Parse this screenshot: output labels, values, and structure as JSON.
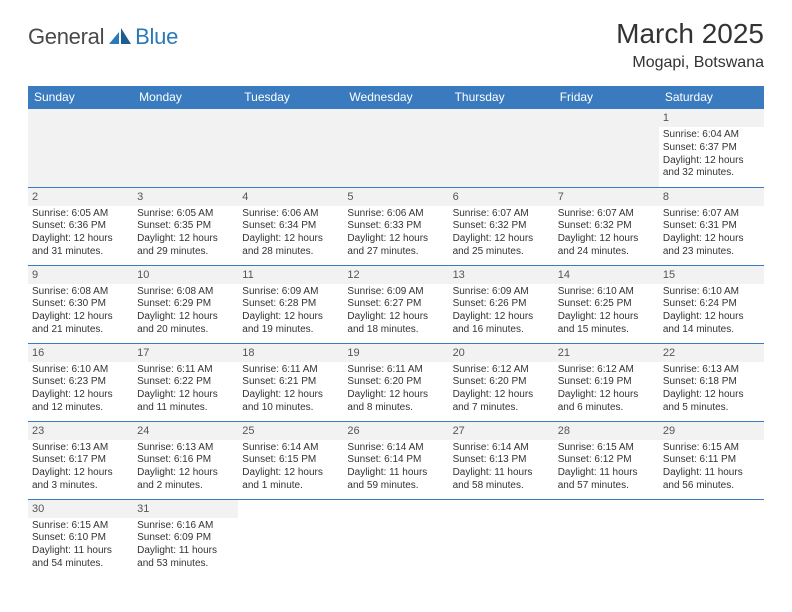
{
  "logo": {
    "text_general": "General",
    "text_blue": "Blue"
  },
  "header": {
    "title": "March 2025",
    "subtitle": "Mogapi, Botswana"
  },
  "colors": {
    "header_bg": "#3a7bbf",
    "header_text": "#ffffff",
    "daynum_bg": "#f2f2f2",
    "border": "#3a7bbf",
    "logo_blue": "#2a7ab9",
    "logo_gray": "#4a4a4a"
  },
  "layout": {
    "columns": 7,
    "rows": 6,
    "font_family": "Arial",
    "cell_font_size": 10,
    "header_font_size": 12
  },
  "days_of_week": [
    "Sunday",
    "Monday",
    "Tuesday",
    "Wednesday",
    "Thursday",
    "Friday",
    "Saturday"
  ],
  "grid": [
    [
      null,
      null,
      null,
      null,
      null,
      null,
      {
        "n": "1",
        "sunrise": "Sunrise: 6:04 AM",
        "sunset": "Sunset: 6:37 PM",
        "daylight": "Daylight: 12 hours and 32 minutes."
      }
    ],
    [
      {
        "n": "2",
        "sunrise": "Sunrise: 6:05 AM",
        "sunset": "Sunset: 6:36 PM",
        "daylight": "Daylight: 12 hours and 31 minutes."
      },
      {
        "n": "3",
        "sunrise": "Sunrise: 6:05 AM",
        "sunset": "Sunset: 6:35 PM",
        "daylight": "Daylight: 12 hours and 29 minutes."
      },
      {
        "n": "4",
        "sunrise": "Sunrise: 6:06 AM",
        "sunset": "Sunset: 6:34 PM",
        "daylight": "Daylight: 12 hours and 28 minutes."
      },
      {
        "n": "5",
        "sunrise": "Sunrise: 6:06 AM",
        "sunset": "Sunset: 6:33 PM",
        "daylight": "Daylight: 12 hours and 27 minutes."
      },
      {
        "n": "6",
        "sunrise": "Sunrise: 6:07 AM",
        "sunset": "Sunset: 6:32 PM",
        "daylight": "Daylight: 12 hours and 25 minutes."
      },
      {
        "n": "7",
        "sunrise": "Sunrise: 6:07 AM",
        "sunset": "Sunset: 6:32 PM",
        "daylight": "Daylight: 12 hours and 24 minutes."
      },
      {
        "n": "8",
        "sunrise": "Sunrise: 6:07 AM",
        "sunset": "Sunset: 6:31 PM",
        "daylight": "Daylight: 12 hours and 23 minutes."
      }
    ],
    [
      {
        "n": "9",
        "sunrise": "Sunrise: 6:08 AM",
        "sunset": "Sunset: 6:30 PM",
        "daylight": "Daylight: 12 hours and 21 minutes."
      },
      {
        "n": "10",
        "sunrise": "Sunrise: 6:08 AM",
        "sunset": "Sunset: 6:29 PM",
        "daylight": "Daylight: 12 hours and 20 minutes."
      },
      {
        "n": "11",
        "sunrise": "Sunrise: 6:09 AM",
        "sunset": "Sunset: 6:28 PM",
        "daylight": "Daylight: 12 hours and 19 minutes."
      },
      {
        "n": "12",
        "sunrise": "Sunrise: 6:09 AM",
        "sunset": "Sunset: 6:27 PM",
        "daylight": "Daylight: 12 hours and 18 minutes."
      },
      {
        "n": "13",
        "sunrise": "Sunrise: 6:09 AM",
        "sunset": "Sunset: 6:26 PM",
        "daylight": "Daylight: 12 hours and 16 minutes."
      },
      {
        "n": "14",
        "sunrise": "Sunrise: 6:10 AM",
        "sunset": "Sunset: 6:25 PM",
        "daylight": "Daylight: 12 hours and 15 minutes."
      },
      {
        "n": "15",
        "sunrise": "Sunrise: 6:10 AM",
        "sunset": "Sunset: 6:24 PM",
        "daylight": "Daylight: 12 hours and 14 minutes."
      }
    ],
    [
      {
        "n": "16",
        "sunrise": "Sunrise: 6:10 AM",
        "sunset": "Sunset: 6:23 PM",
        "daylight": "Daylight: 12 hours and 12 minutes."
      },
      {
        "n": "17",
        "sunrise": "Sunrise: 6:11 AM",
        "sunset": "Sunset: 6:22 PM",
        "daylight": "Daylight: 12 hours and 11 minutes."
      },
      {
        "n": "18",
        "sunrise": "Sunrise: 6:11 AM",
        "sunset": "Sunset: 6:21 PM",
        "daylight": "Daylight: 12 hours and 10 minutes."
      },
      {
        "n": "19",
        "sunrise": "Sunrise: 6:11 AM",
        "sunset": "Sunset: 6:20 PM",
        "daylight": "Daylight: 12 hours and 8 minutes."
      },
      {
        "n": "20",
        "sunrise": "Sunrise: 6:12 AM",
        "sunset": "Sunset: 6:20 PM",
        "daylight": "Daylight: 12 hours and 7 minutes."
      },
      {
        "n": "21",
        "sunrise": "Sunrise: 6:12 AM",
        "sunset": "Sunset: 6:19 PM",
        "daylight": "Daylight: 12 hours and 6 minutes."
      },
      {
        "n": "22",
        "sunrise": "Sunrise: 6:13 AM",
        "sunset": "Sunset: 6:18 PM",
        "daylight": "Daylight: 12 hours and 5 minutes."
      }
    ],
    [
      {
        "n": "23",
        "sunrise": "Sunrise: 6:13 AM",
        "sunset": "Sunset: 6:17 PM",
        "daylight": "Daylight: 12 hours and 3 minutes."
      },
      {
        "n": "24",
        "sunrise": "Sunrise: 6:13 AM",
        "sunset": "Sunset: 6:16 PM",
        "daylight": "Daylight: 12 hours and 2 minutes."
      },
      {
        "n": "25",
        "sunrise": "Sunrise: 6:14 AM",
        "sunset": "Sunset: 6:15 PM",
        "daylight": "Daylight: 12 hours and 1 minute."
      },
      {
        "n": "26",
        "sunrise": "Sunrise: 6:14 AM",
        "sunset": "Sunset: 6:14 PM",
        "daylight": "Daylight: 11 hours and 59 minutes."
      },
      {
        "n": "27",
        "sunrise": "Sunrise: 6:14 AM",
        "sunset": "Sunset: 6:13 PM",
        "daylight": "Daylight: 11 hours and 58 minutes."
      },
      {
        "n": "28",
        "sunrise": "Sunrise: 6:15 AM",
        "sunset": "Sunset: 6:12 PM",
        "daylight": "Daylight: 11 hours and 57 minutes."
      },
      {
        "n": "29",
        "sunrise": "Sunrise: 6:15 AM",
        "sunset": "Sunset: 6:11 PM",
        "daylight": "Daylight: 11 hours and 56 minutes."
      }
    ],
    [
      {
        "n": "30",
        "sunrise": "Sunrise: 6:15 AM",
        "sunset": "Sunset: 6:10 PM",
        "daylight": "Daylight: 11 hours and 54 minutes."
      },
      {
        "n": "31",
        "sunrise": "Sunrise: 6:16 AM",
        "sunset": "Sunset: 6:09 PM",
        "daylight": "Daylight: 11 hours and 53 minutes."
      },
      null,
      null,
      null,
      null,
      null
    ]
  ]
}
